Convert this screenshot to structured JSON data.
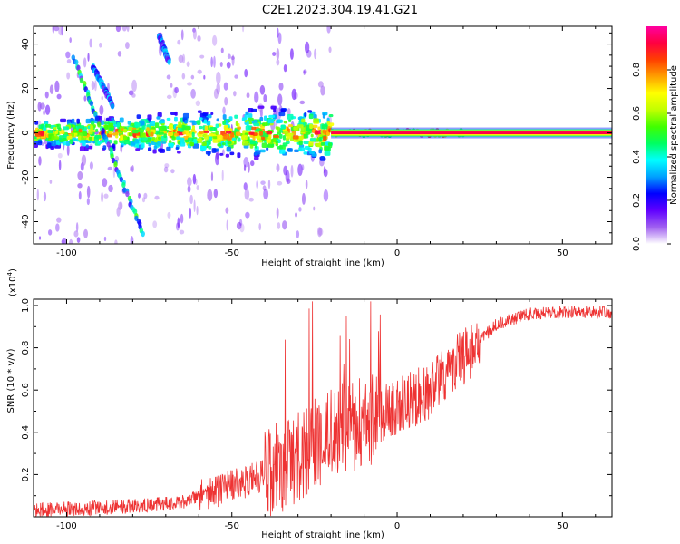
{
  "title": "C2E1.2023.304.19.41.G21",
  "chart_data": [
    {
      "type": "heatmap",
      "xlabel": "Height of straight line (km)",
      "ylabel": "Frequency (Hz)",
      "xlim": [
        -110,
        65
      ],
      "ylim": [
        -50,
        48
      ],
      "xticks": [
        -100,
        -50,
        0,
        50
      ],
      "yticks": [
        -40,
        -20,
        0,
        20,
        40
      ],
      "colorbar": {
        "label": "Normalized spectral amplitude",
        "range": [
          0,
          1
        ],
        "ticks": [
          "0.0",
          "0.2",
          "0.4",
          "0.6",
          "0.8"
        ],
        "colors": [
          "#ffffff",
          "#a060f0",
          "#6000ff",
          "#0000ff",
          "#00a0ff",
          "#00ffff",
          "#00ff60",
          "#40ff00",
          "#c0ff00",
          "#ffff00",
          "#ffa000",
          "#ff4000",
          "#ff0040",
          "#ff00a0"
        ]
      },
      "features": {
        "dc_line": {
          "x_range": [
            -20,
            65
          ],
          "y": 0,
          "amplitude": 1.0
        },
        "noisy_band": {
          "x_range": [
            -110,
            -20
          ],
          "y_halfwidth_start": 6,
          "y_halfwidth_end": 14
        },
        "streaks": [
          {
            "x": [
              -98,
              -77
            ],
            "y": [
              34,
              -45
            ]
          },
          {
            "x": [
              -92,
              -86
            ],
            "y": [
              30,
              12
            ]
          },
          {
            "x": [
              -72,
              -69
            ],
            "y": [
              44,
              32
            ]
          }
        ]
      }
    },
    {
      "type": "line",
      "xlabel": "Height of straight line (km)",
      "ylabel": "SNR (10 * v/v)",
      "yscale_label": "(x10",
      "yscale_exp": "4",
      "yscale_close": ")",
      "xlim": [
        -110,
        65
      ],
      "ylim": [
        0,
        1.03
      ],
      "xticks": [
        -100,
        -50,
        0,
        50
      ],
      "yticks": [
        0.2,
        0.4,
        0.6,
        0.8,
        1.0
      ],
      "ytick_labels": [
        "0.2",
        "0.4",
        "0.6",
        "0.8",
        "1.0"
      ],
      "color": "#ee3333",
      "trend": {
        "x": [
          -110,
          -80,
          -65,
          -55,
          -40,
          -30,
          -20,
          -10,
          0,
          10,
          20,
          30,
          40,
          50,
          65
        ],
        "y": [
          0.03,
          0.05,
          0.07,
          0.12,
          0.2,
          0.28,
          0.4,
          0.45,
          0.52,
          0.6,
          0.76,
          0.91,
          0.96,
          0.97,
          0.97
        ]
      }
    }
  ]
}
